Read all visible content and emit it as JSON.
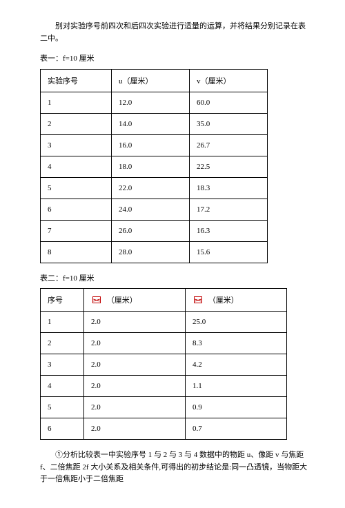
{
  "intro_para": "别对实验序号前四次和后四次实验进行适量的运算，并将结果分别记录在表二中。",
  "table1": {
    "caption": "表一：f=10 厘米",
    "headers": [
      "实验序号",
      "u（厘米）",
      "v（厘米）"
    ],
    "rows": [
      [
        "1",
        "12.0",
        "60.0"
      ],
      [
        "2",
        "14.0",
        "35.0"
      ],
      [
        "3",
        "16.0",
        "26.7"
      ],
      [
        "4",
        "18.0",
        "22.5"
      ],
      [
        "5",
        "22.0",
        "18.3"
      ],
      [
        "6",
        "24.0",
        "17.2"
      ],
      [
        "7",
        "26.0",
        "16.3"
      ],
      [
        "8",
        "28.0",
        "15.6"
      ]
    ]
  },
  "table2": {
    "caption": "表二：f=10 厘米",
    "header_num": "序号",
    "header_unit": "（厘米）",
    "rows": [
      [
        "1",
        "2.0",
        "25.0"
      ],
      [
        "2",
        "2.0",
        "8.3"
      ],
      [
        "3",
        "2.0",
        "4.2"
      ],
      [
        "4",
        "2.0",
        "1.1"
      ],
      [
        "5",
        "2.0",
        "0.9"
      ],
      [
        "6",
        "2.0",
        "0.7"
      ]
    ]
  },
  "conclusion_para": "①分析比较表一中实验序号 1 与 2 与 3 与 4 数据中的物距 u、像距 v 与焦距 f、二倍焦距 2f 大小关系及相关条件,可得出的初步结论是:同一凸透镜，当物距大于一倍焦距小于二倍焦距"
}
